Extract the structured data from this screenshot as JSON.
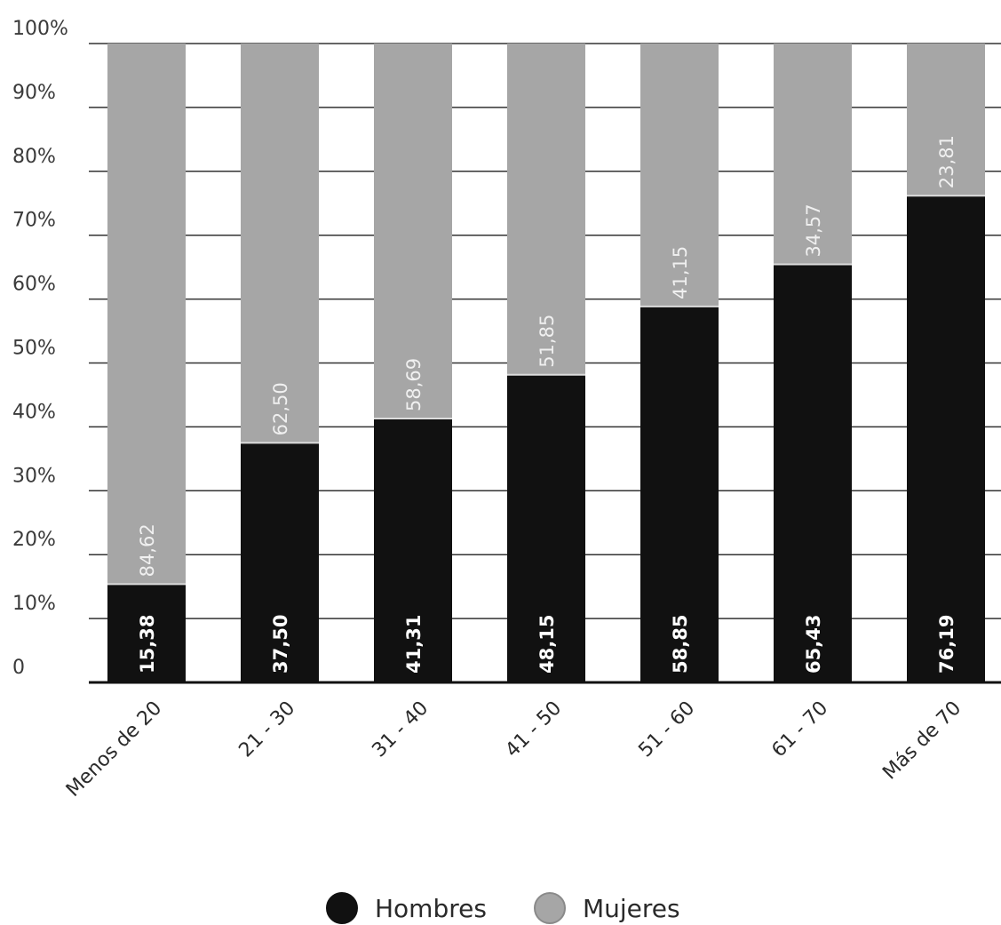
{
  "chart_data": {
    "type": "bar",
    "stacked": true,
    "categories": [
      "Menos de 20",
      "21 - 30",
      "31 - 40",
      "41 - 50",
      "51 - 60",
      "61 - 70",
      "Más de 70"
    ],
    "series": [
      {
        "name": "Hombres",
        "color": "#111111",
        "values": [
          15.38,
          37.5,
          41.31,
          48.15,
          58.85,
          65.43,
          76.19
        ],
        "labels": [
          "15,38",
          "37,50",
          "41,31",
          "48,15",
          "58,85",
          "65,43",
          "76,19"
        ]
      },
      {
        "name": "Mujeres",
        "color": "#a6a6a6",
        "values": [
          84.62,
          62.5,
          58.69,
          51.85,
          41.15,
          34.57,
          23.81
        ],
        "labels": [
          "84,62",
          "62,50",
          "58,69",
          "51,85",
          "41,15",
          "34,57",
          "23,81"
        ]
      }
    ],
    "yticks": [
      0,
      10,
      20,
      30,
      40,
      50,
      60,
      70,
      80,
      90,
      100
    ],
    "ytick_labels": [
      "0",
      "10%",
      "20%",
      "30%",
      "40%",
      "50%",
      "60%",
      "70%",
      "80%",
      "90%",
      "100%"
    ],
    "ylim": [
      0,
      100
    ],
    "grid": true,
    "legend_position": "bottom-center"
  }
}
